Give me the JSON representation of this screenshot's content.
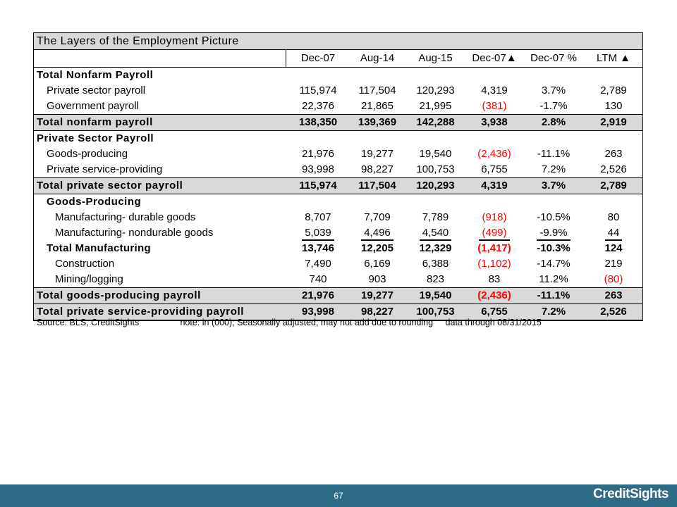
{
  "table": {
    "title": "The Layers of the Employment Picture",
    "headers": [
      "Dec-07",
      "Aug-14",
      "Aug-15",
      "Dec-07▲",
      "Dec-07 %",
      "LTM ▲"
    ],
    "sections": [
      {
        "title": "Total Nonfarm Payroll",
        "rows": [
          {
            "label": "Private sector payroll",
            "values": [
              "115,974",
              "117,504",
              "120,293",
              "4,319",
              "3.7%",
              "2,789"
            ]
          },
          {
            "label": "Government payroll",
            "values": [
              "22,376",
              "21,865",
              "21,995",
              "(381)",
              "-1.7%",
              "130"
            ]
          }
        ],
        "total": {
          "label": "Total nonfarm payroll",
          "values": [
            "138,350",
            "139,369",
            "142,288",
            "3,938",
            "2.8%",
            "2,919"
          ]
        }
      },
      {
        "title": "Private Sector Payroll",
        "rows": [
          {
            "label": "Goods-producing",
            "values": [
              "21,976",
              "19,277",
              "19,540",
              "(2,436)",
              "-11.1%",
              "263"
            ]
          },
          {
            "label": "Private service-providing",
            "values": [
              "93,998",
              "98,227",
              "100,753",
              "6,755",
              "7.2%",
              "2,526"
            ]
          }
        ],
        "total": {
          "label": "Total private sector payroll",
          "values": [
            "115,974",
            "117,504",
            "120,293",
            "4,319",
            "3.7%",
            "2,789"
          ]
        }
      }
    ],
    "goods": {
      "title": "Goods-Producing",
      "rows": [
        {
          "label": "Manufacturing- durable goods",
          "values": [
            "8,707",
            "7,709",
            "7,789",
            "(918)",
            "-10.5%",
            "80"
          ]
        },
        {
          "label": "Manufacturing- nondurable goods",
          "values": [
            "5,039",
            "4,496",
            "4,540",
            "(499)",
            "-9.9%",
            "44"
          ]
        }
      ],
      "subtotal": {
        "label": "Total Manufacturing",
        "values": [
          "13,746",
          "12,205",
          "12,329",
          "(1,417)",
          "-10.3%",
          "124"
        ]
      },
      "rows2": [
        {
          "label": "Construction",
          "values": [
            "7,490",
            "6,169",
            "6,388",
            "(1,102)",
            "-14.7%",
            "219"
          ]
        },
        {
          "label": "Mining/logging",
          "values": [
            "740",
            "903",
            "823",
            "83",
            "11.2%",
            "(80)"
          ]
        }
      ],
      "totals": [
        {
          "label": "Total goods-producing payroll",
          "values": [
            "21,976",
            "19,277",
            "19,540",
            "(2,436)",
            "-11.1%",
            "263"
          ]
        },
        {
          "label": "Total private service-providing payroll",
          "values": [
            "93,998",
            "98,227",
            "100,753",
            "6,755",
            "7.2%",
            "2,526"
          ]
        }
      ]
    }
  },
  "source": {
    "source": "Source: BLS, CreditSights",
    "note": "note: in (000); Seasonally adjusted; may not add due to rounding",
    "data": "data through 08/31/2015"
  },
  "footer": {
    "page": "67",
    "logo": "CreditSights"
  },
  "colors": {
    "header_fill": "#d9d9d9",
    "negative": "#ff0000",
    "footer_bar": "#2e6b87"
  }
}
